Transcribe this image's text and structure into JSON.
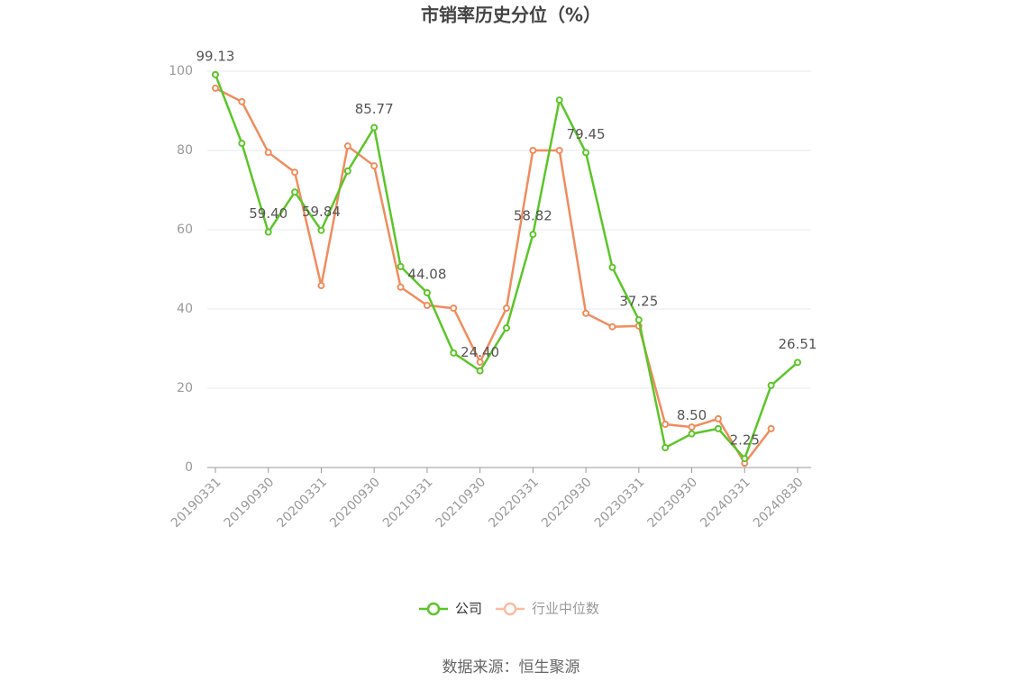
{
  "chart_data": {
    "type": "line",
    "title": "市销率历史分位（%）",
    "categories": [
      "20190331",
      null,
      "20190930",
      null,
      "20200331",
      null,
      "20200930",
      null,
      "20210331",
      null,
      "20210930",
      null,
      "20220331",
      null,
      "20220930",
      null,
      "20230331",
      null,
      "20230930",
      null,
      "20240331",
      null,
      "20240830"
    ],
    "series": [
      {
        "name": "公司",
        "color": "#5cc52a",
        "values": [
          99.13,
          81.8,
          59.4,
          69.5,
          59.84,
          74.8,
          85.77,
          50.7,
          44.08,
          28.9,
          24.4,
          35.2,
          58.82,
          92.7,
          79.45,
          50.5,
          37.25,
          5.0,
          8.5,
          9.8,
          2.25,
          20.7,
          26.51
        ],
        "value_labels": [
          "99.13",
          null,
          "59.40",
          null,
          "59.84",
          null,
          "85.77",
          null,
          "44.08",
          null,
          "24.40",
          null,
          "58.82",
          null,
          "79.45",
          null,
          "37.25",
          null,
          "8.50",
          null,
          "2.25",
          null,
          "26.51"
        ]
      },
      {
        "name": "行业中位数",
        "color": "#f08c5e",
        "values": [
          95.7,
          92.3,
          79.5,
          74.5,
          45.9,
          81.1,
          76.1,
          45.5,
          40.9,
          40.2,
          26.6,
          40.2,
          80.0,
          80.0,
          38.9,
          35.5,
          35.7,
          10.9,
          10.2,
          12.3,
          1.1,
          9.8,
          null
        ]
      }
    ],
    "ylim": [
      0,
      100
    ],
    "yticks": [
      0,
      20,
      40,
      60,
      80,
      100
    ],
    "grid": true,
    "source": "数据来源：恒生聚源"
  }
}
